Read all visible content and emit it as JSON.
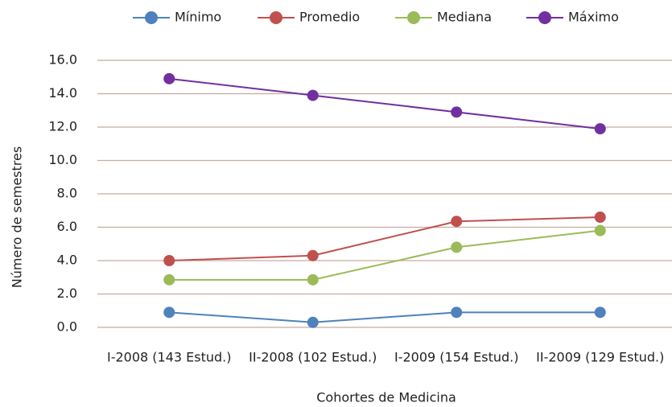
{
  "chart_data": {
    "type": "line",
    "x_label": "Cohortes de Medicina",
    "y_label": "Número de semestres",
    "categories": [
      "I-2008 (143 Estud.)",
      "II-2008 (102 Estud.)",
      "I-2009 (154 Estud.)",
      "II-2009 (129 Estud.)"
    ],
    "series": [
      {
        "name": "Mínimo",
        "color": "#4f81bd",
        "values": [
          0.9,
          0.3,
          0.9,
          0.9
        ]
      },
      {
        "name": "Promedio",
        "color": "#c0504d",
        "values": [
          4.0,
          4.3,
          6.35,
          6.6
        ]
      },
      {
        "name": "Mediana",
        "color": "#9bbb59",
        "values": [
          2.85,
          2.85,
          4.8,
          5.8
        ]
      },
      {
        "name": "Máximo",
        "color": "#7030a0",
        "values": [
          14.9,
          13.9,
          12.9,
          11.9
        ]
      }
    ],
    "ylim": [
      0,
      16
    ],
    "yticks": [
      {
        "value": 0,
        "label": "0.0"
      },
      {
        "value": 2,
        "label": "2.0"
      },
      {
        "value": 4,
        "label": "4.0"
      },
      {
        "value": 6,
        "label": "6.0"
      },
      {
        "value": 8,
        "label": "8.0"
      },
      {
        "value": 10,
        "label": "10.0"
      },
      {
        "value": 12,
        "label": "12.0"
      },
      {
        "value": 14,
        "label": "14.0"
      },
      {
        "value": 16,
        "label": "16.0"
      }
    ],
    "grid": true,
    "legend": "top"
  }
}
